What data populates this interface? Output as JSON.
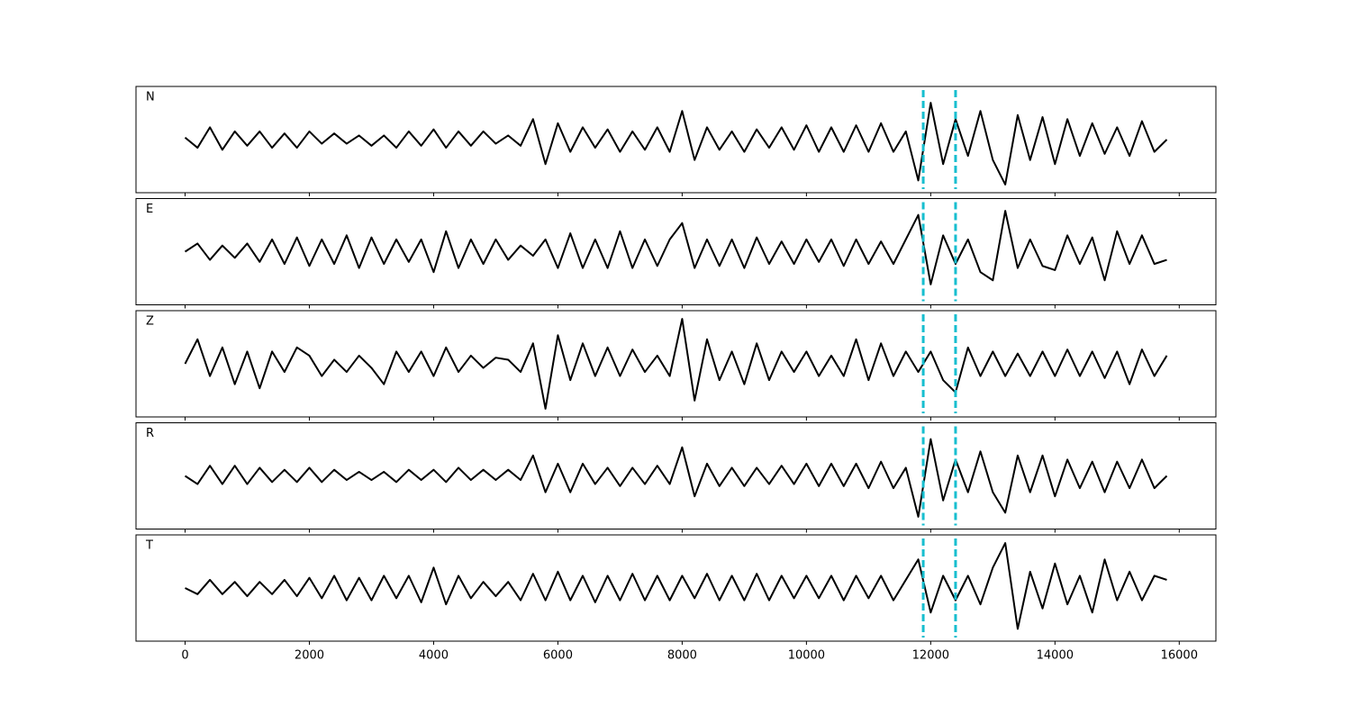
{
  "chart_data": {
    "type": "line",
    "x": [
      0,
      200,
      400,
      600,
      800,
      1000,
      1200,
      1400,
      1600,
      1800,
      2000,
      2200,
      2400,
      2600,
      2800,
      3000,
      3200,
      3400,
      3600,
      3800,
      4000,
      4200,
      4400,
      4600,
      4800,
      5000,
      5200,
      5400,
      5600,
      5800,
      6000,
      6200,
      6400,
      6600,
      6800,
      7000,
      7200,
      7400,
      7600,
      7800,
      8000,
      8200,
      8400,
      8600,
      8800,
      9000,
      9200,
      9400,
      9600,
      9800,
      10000,
      10200,
      10400,
      10600,
      10800,
      11000,
      11200,
      11400,
      11600,
      11800,
      12000,
      12200,
      12400,
      12600,
      12800,
      13000,
      13200,
      13400,
      13600,
      13800,
      14000,
      14200,
      14400,
      14600,
      14800,
      15000,
      15200,
      15400,
      15600,
      15800
    ],
    "xlim": [
      -790,
      16590
    ],
    "xticks": [
      0,
      2000,
      4000,
      6000,
      8000,
      10000,
      12000,
      14000,
      16000
    ],
    "ylim": [
      -1.3,
      1.3
    ],
    "vlines": [
      11880,
      12400
    ],
    "vline_color": "#17becf",
    "series": [
      {
        "name": "N",
        "color": "#000000",
        "values": [
          0.05,
          -0.2,
          0.3,
          -0.25,
          0.2,
          -0.15,
          0.2,
          -0.2,
          0.15,
          -0.2,
          0.2,
          -0.1,
          0.15,
          -0.1,
          0.1,
          -0.15,
          0.1,
          -0.2,
          0.2,
          -0.15,
          0.25,
          -0.2,
          0.2,
          -0.15,
          0.2,
          -0.1,
          0.1,
          -0.15,
          0.5,
          -0.6,
          0.4,
          -0.3,
          0.3,
          -0.2,
          0.25,
          -0.3,
          0.2,
          -0.25,
          0.3,
          -0.3,
          0.7,
          -0.5,
          0.3,
          -0.25,
          0.2,
          -0.3,
          0.25,
          -0.2,
          0.3,
          -0.25,
          0.35,
          -0.3,
          0.3,
          -0.3,
          0.35,
          -0.3,
          0.4,
          -0.3,
          0.2,
          -1.0,
          0.9,
          -0.6,
          0.5,
          -0.4,
          0.7,
          -0.5,
          -1.1,
          0.6,
          -0.5,
          0.55,
          -0.6,
          0.5,
          -0.4,
          0.4,
          -0.35,
          0.3,
          -0.4,
          0.45,
          -0.3,
          0.0
        ]
      },
      {
        "name": "E",
        "color": "#000000",
        "values": [
          0.0,
          0.2,
          -0.2,
          0.15,
          -0.15,
          0.2,
          -0.25,
          0.3,
          -0.3,
          0.35,
          -0.35,
          0.3,
          -0.3,
          0.4,
          -0.4,
          0.35,
          -0.3,
          0.3,
          -0.25,
          0.3,
          -0.5,
          0.5,
          -0.4,
          0.3,
          -0.3,
          0.3,
          -0.2,
          0.15,
          -0.1,
          0.3,
          -0.4,
          0.45,
          -0.4,
          0.3,
          -0.4,
          0.5,
          -0.4,
          0.3,
          -0.35,
          0.3,
          0.7,
          -0.4,
          0.3,
          -0.35,
          0.3,
          -0.4,
          0.35,
          -0.3,
          0.25,
          -0.3,
          0.3,
          -0.25,
          0.3,
          -0.35,
          0.3,
          -0.3,
          0.25,
          -0.3,
          0.3,
          0.9,
          -0.8,
          0.4,
          -0.3,
          0.3,
          -0.5,
          -0.7,
          1.0,
          -0.4,
          0.3,
          -0.35,
          -0.45,
          0.4,
          -0.3,
          0.35,
          -0.7,
          0.5,
          -0.3,
          0.4,
          -0.3,
          -0.2
        ]
      },
      {
        "name": "Z",
        "color": "#000000",
        "values": [
          0.0,
          0.6,
          -0.3,
          0.4,
          -0.5,
          0.3,
          -0.6,
          0.3,
          -0.2,
          0.4,
          0.2,
          -0.3,
          0.1,
          -0.2,
          0.2,
          -0.1,
          -0.5,
          0.3,
          -0.2,
          0.3,
          -0.3,
          0.4,
          -0.2,
          0.2,
          -0.1,
          0.15,
          0.1,
          -0.2,
          0.5,
          -1.1,
          0.7,
          -0.4,
          0.5,
          -0.3,
          0.4,
          -0.3,
          0.35,
          -0.2,
          0.2,
          -0.3,
          1.1,
          -0.9,
          0.6,
          -0.4,
          0.3,
          -0.5,
          0.5,
          -0.4,
          0.3,
          -0.2,
          0.3,
          -0.3,
          0.2,
          -0.3,
          0.6,
          -0.4,
          0.5,
          -0.3,
          0.3,
          -0.2,
          0.3,
          -0.4,
          -0.7,
          0.4,
          -0.3,
          0.3,
          -0.3,
          0.25,
          -0.3,
          0.3,
          -0.3,
          0.35,
          -0.3,
          0.3,
          -0.35,
          0.3,
          -0.5,
          0.35,
          -0.3,
          0.2
        ]
      },
      {
        "name": "R",
        "color": "#000000",
        "values": [
          0.0,
          -0.2,
          0.25,
          -0.2,
          0.25,
          -0.2,
          0.2,
          -0.15,
          0.15,
          -0.15,
          0.2,
          -0.15,
          0.15,
          -0.1,
          0.1,
          -0.1,
          0.1,
          -0.15,
          0.15,
          -0.1,
          0.15,
          -0.15,
          0.2,
          -0.1,
          0.15,
          -0.1,
          0.15,
          -0.1,
          0.5,
          -0.4,
          0.3,
          -0.4,
          0.3,
          -0.2,
          0.2,
          -0.25,
          0.2,
          -0.2,
          0.25,
          -0.2,
          0.7,
          -0.5,
          0.3,
          -0.25,
          0.2,
          -0.25,
          0.2,
          -0.2,
          0.25,
          -0.2,
          0.3,
          -0.25,
          0.3,
          -0.25,
          0.3,
          -0.3,
          0.35,
          -0.3,
          0.2,
          -1.0,
          0.9,
          -0.6,
          0.4,
          -0.4,
          0.6,
          -0.4,
          -0.9,
          0.5,
          -0.4,
          0.5,
          -0.5,
          0.4,
          -0.3,
          0.35,
          -0.4,
          0.35,
          -0.3,
          0.4,
          -0.3,
          0.0
        ]
      },
      {
        "name": "T",
        "color": "#000000",
        "values": [
          0.0,
          -0.15,
          0.2,
          -0.15,
          0.15,
          -0.2,
          0.15,
          -0.15,
          0.2,
          -0.2,
          0.25,
          -0.25,
          0.3,
          -0.3,
          0.25,
          -0.3,
          0.3,
          -0.25,
          0.3,
          -0.35,
          0.5,
          -0.4,
          0.3,
          -0.25,
          0.15,
          -0.2,
          0.15,
          -0.3,
          0.35,
          -0.3,
          0.4,
          -0.3,
          0.3,
          -0.35,
          0.3,
          -0.3,
          0.35,
          -0.3,
          0.3,
          -0.3,
          0.3,
          -0.25,
          0.35,
          -0.3,
          0.3,
          -0.3,
          0.35,
          -0.3,
          0.3,
          -0.25,
          0.3,
          -0.25,
          0.3,
          -0.3,
          0.3,
          -0.25,
          0.3,
          -0.3,
          0.2,
          0.7,
          -0.6,
          0.3,
          -0.3,
          0.3,
          -0.4,
          0.5,
          1.1,
          -1.0,
          0.4,
          -0.5,
          0.6,
          -0.4,
          0.3,
          -0.6,
          0.7,
          -0.3,
          0.4,
          -0.3,
          0.3,
          0.2
        ]
      }
    ]
  }
}
